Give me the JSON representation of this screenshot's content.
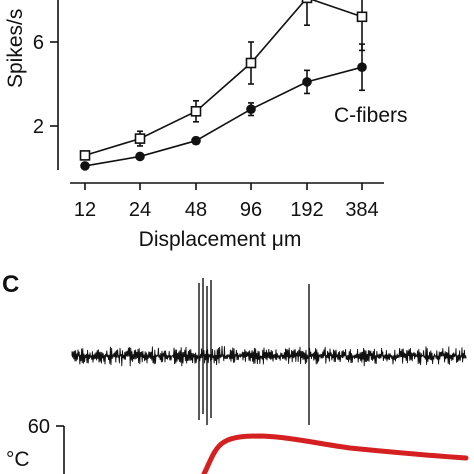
{
  "chart_data": [
    {
      "type": "line",
      "title": "",
      "xlabel": "Displacement μm",
      "ylabel": "Spikes/s",
      "categories": [
        "12",
        "24",
        "48",
        "96",
        "192",
        "384"
      ],
      "yticks": [
        "2",
        "6"
      ],
      "ylim": [
        0,
        9
      ],
      "grid": false,
      "annotation": "C-fibers",
      "series": [
        {
          "marker": "open-square",
          "values": [
            0.6,
            1.4,
            2.7,
            5.0,
            8.1,
            7.2
          ],
          "errors": [
            0.15,
            0.35,
            0.5,
            1.0,
            1.3,
            1.6
          ]
        },
        {
          "marker": "filled-circle",
          "values": [
            0.1,
            0.55,
            1.3,
            2.8,
            4.1,
            4.8
          ],
          "errors": [
            0.1,
            0.1,
            0.15,
            0.3,
            0.55,
            1.1
          ]
        }
      ]
    },
    {
      "panel_label": "C",
      "type": "line",
      "ylabel": "°C",
      "yticks": [
        "60"
      ],
      "series": [
        {
          "name": "",
          "color": "#d42020",
          "values": []
        }
      ]
    }
  ],
  "colors": {
    "ink": "#111111",
    "temperature_trace": "#d42020"
  }
}
